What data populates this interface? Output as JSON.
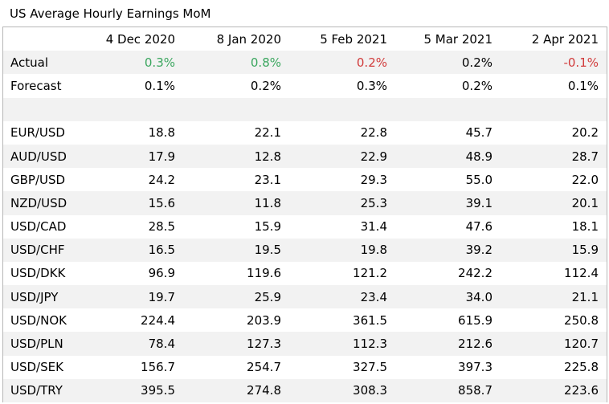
{
  "title": "US Average Hourly Earnings MoM",
  "colors": {
    "positive": "#3aa65e",
    "negative": "#d13a3a",
    "alt_row": "#f2f2f2"
  },
  "columns": [
    "4 Dec 2020",
    "8 Jan 2020",
    "5 Feb 2021",
    "5 Mar 2021",
    "2 Apr 2021"
  ],
  "actual": {
    "label": "Actual",
    "values": [
      "0.3%",
      "0.8%",
      "0.2%",
      "0.2%",
      "-0.1%"
    ],
    "tone": [
      "pos",
      "pos",
      "neg",
      "",
      "neg"
    ]
  },
  "forecast": {
    "label": "Forecast",
    "values": [
      "0.1%",
      "0.2%",
      "0.3%",
      "0.2%",
      "0.1%"
    ]
  },
  "pairs": [
    {
      "label": "EUR/USD",
      "values": [
        "18.8",
        "22.1",
        "22.8",
        "45.7",
        "20.2"
      ]
    },
    {
      "label": "AUD/USD",
      "values": [
        "17.9",
        "12.8",
        "22.9",
        "48.9",
        "28.7"
      ]
    },
    {
      "label": "GBP/USD",
      "values": [
        "24.2",
        "23.1",
        "29.3",
        "55.0",
        "22.0"
      ]
    },
    {
      "label": "NZD/USD",
      "values": [
        "15.6",
        "11.8",
        "25.3",
        "39.1",
        "20.1"
      ]
    },
    {
      "label": "USD/CAD",
      "values": [
        "28.5",
        "15.9",
        "31.4",
        "47.6",
        "18.1"
      ]
    },
    {
      "label": "USD/CHF",
      "values": [
        "16.5",
        "19.5",
        "19.8",
        "39.2",
        "15.9"
      ]
    },
    {
      "label": "USD/DKK",
      "values": [
        "96.9",
        "119.6",
        "121.2",
        "242.2",
        "112.4"
      ]
    },
    {
      "label": "USD/JPY",
      "values": [
        "19.7",
        "25.9",
        "23.4",
        "34.0",
        "21.1"
      ]
    },
    {
      "label": "USD/NOK",
      "values": [
        "224.4",
        "203.9",
        "361.5",
        "615.9",
        "250.8"
      ]
    },
    {
      "label": "USD/PLN",
      "values": [
        "78.4",
        "127.3",
        "112.3",
        "212.6",
        "120.7"
      ]
    },
    {
      "label": "USD/SEK",
      "values": [
        "156.7",
        "254.7",
        "327.5",
        "397.3",
        "225.8"
      ]
    },
    {
      "label": "USD/TRY",
      "values": [
        "395.5",
        "274.8",
        "308.3",
        "858.7",
        "223.6"
      ]
    }
  ]
}
